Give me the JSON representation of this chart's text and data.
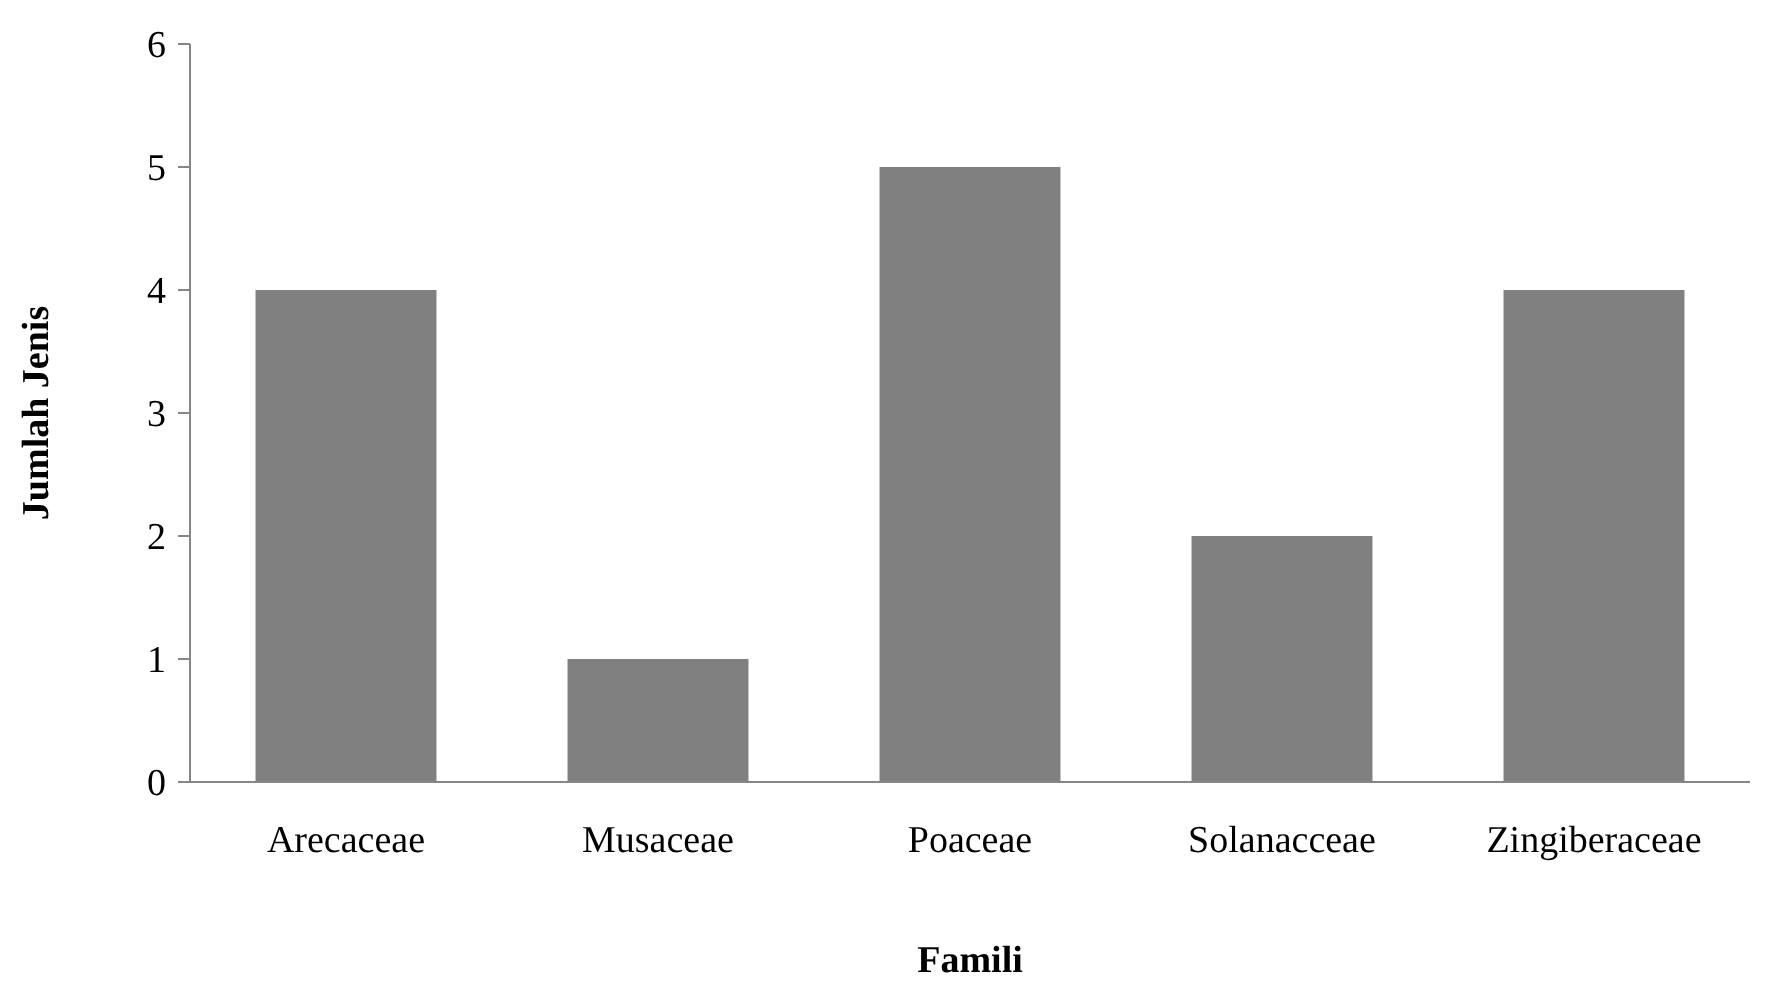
{
  "chart_data": {
    "type": "bar",
    "xlabel": "Famili",
    "ylabel": "Jumlah Jenis",
    "categories": [
      "Arecaceae",
      "Musaceae",
      "Poaceae",
      "Solanacceae",
      "Zingiberaceae"
    ],
    "values": [
      4,
      1,
      5,
      2,
      4
    ],
    "color": "#808080",
    "ylim": [
      0,
      6
    ],
    "yticks": [
      0,
      1,
      2,
      3,
      4,
      5,
      6
    ],
    "grid": false
  }
}
